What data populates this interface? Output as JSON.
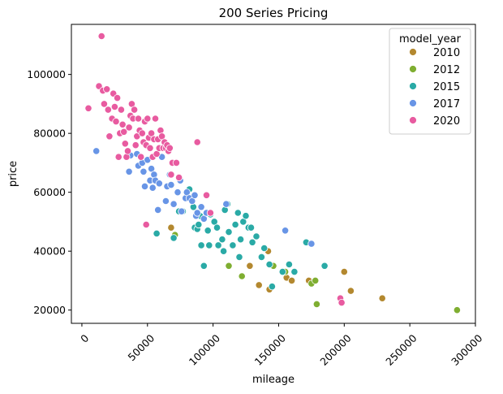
{
  "chart_data": {
    "type": "scatter",
    "title": "200 Series Pricing",
    "xlabel": "mileage",
    "ylabel": "price",
    "xlim": [
      -8000,
      300000
    ],
    "ylim": [
      15500,
      117000
    ],
    "xticks": [
      "0",
      "50000",
      "100000",
      "150000",
      "200000",
      "250000",
      "300000"
    ],
    "xtick_values": [
      0,
      50000,
      100000,
      150000,
      200000,
      250000,
      300000
    ],
    "yticks": [
      "20000",
      "40000",
      "60000",
      "80000",
      "100000"
    ],
    "ytick_values": [
      20000,
      40000,
      60000,
      80000,
      100000
    ],
    "grid": false,
    "legend_title": "model_year",
    "legend_position": "top-right",
    "series": [
      {
        "name": "2010",
        "color": "#b3882f",
        "points": [
          [
            68000,
            48000
          ],
          [
            128000,
            35000
          ],
          [
            135000,
            28500
          ],
          [
            142000,
            40000
          ],
          [
            143000,
            27000
          ],
          [
            156000,
            31000
          ],
          [
            160000,
            30000
          ],
          [
            173000,
            30000
          ],
          [
            200000,
            33000
          ],
          [
            205000,
            26500
          ],
          [
            229000,
            24000
          ]
        ]
      },
      {
        "name": "2012",
        "color": "#7fae31",
        "points": [
          [
            71000,
            45500
          ],
          [
            112000,
            35000
          ],
          [
            122000,
            31500
          ],
          [
            146000,
            35000
          ],
          [
            155000,
            33000
          ],
          [
            175000,
            29000
          ],
          [
            178000,
            30000
          ],
          [
            179000,
            22000
          ],
          [
            286000,
            20000
          ]
        ]
      },
      {
        "name": "2015",
        "color": "#2aaaa6",
        "points": [
          [
            57000,
            46000
          ],
          [
            70000,
            44500
          ],
          [
            74000,
            53500
          ],
          [
            77000,
            53500
          ],
          [
            82000,
            61000
          ],
          [
            85000,
            55000
          ],
          [
            86000,
            48000
          ],
          [
            88000,
            47500
          ],
          [
            89000,
            49000
          ],
          [
            90000,
            52000
          ],
          [
            91000,
            42000
          ],
          [
            93000,
            35000
          ],
          [
            96000,
            47000
          ],
          [
            97000,
            42000
          ],
          [
            98000,
            52500
          ],
          [
            101000,
            50000
          ],
          [
            103000,
            48000
          ],
          [
            104000,
            42000
          ],
          [
            107000,
            44000
          ],
          [
            108000,
            40000
          ],
          [
            109000,
            54000
          ],
          [
            111000,
            56000
          ],
          [
            112000,
            46500
          ],
          [
            115000,
            42000
          ],
          [
            117000,
            49000
          ],
          [
            119000,
            53000
          ],
          [
            120000,
            38000
          ],
          [
            121000,
            44000
          ],
          [
            123000,
            50000
          ],
          [
            125000,
            52000
          ],
          [
            127000,
            48000
          ],
          [
            129000,
            48000
          ],
          [
            130000,
            43000
          ],
          [
            133000,
            45000
          ],
          [
            137000,
            38000
          ],
          [
            139000,
            41000
          ],
          [
            143000,
            35500
          ],
          [
            145000,
            28000
          ],
          [
            153000,
            33000
          ],
          [
            158000,
            35500
          ],
          [
            162000,
            33000
          ],
          [
            171000,
            43000
          ],
          [
            185000,
            35000
          ]
        ]
      },
      {
        "name": "2017",
        "color": "#6895e6",
        "points": [
          [
            11000,
            74000
          ],
          [
            36000,
            67000
          ],
          [
            37000,
            72500
          ],
          [
            42000,
            73000
          ],
          [
            43000,
            69000
          ],
          [
            46000,
            70000
          ],
          [
            47000,
            67000
          ],
          [
            48000,
            62000
          ],
          [
            50000,
            71000
          ],
          [
            52000,
            64000
          ],
          [
            53000,
            68000
          ],
          [
            54000,
            61500
          ],
          [
            55000,
            66000
          ],
          [
            56000,
            64000
          ],
          [
            58000,
            54000
          ],
          [
            59000,
            63000
          ],
          [
            61000,
            72000
          ],
          [
            64000,
            57000
          ],
          [
            65000,
            62000
          ],
          [
            67000,
            66000
          ],
          [
            68000,
            62500
          ],
          [
            70000,
            56000
          ],
          [
            73000,
            60000
          ],
          [
            75000,
            64000
          ],
          [
            76000,
            53500
          ],
          [
            79000,
            58000
          ],
          [
            80000,
            60000
          ],
          [
            82000,
            58000
          ],
          [
            84000,
            57000
          ],
          [
            86000,
            59000
          ],
          [
            87000,
            52000
          ],
          [
            88000,
            53000
          ],
          [
            91000,
            55000
          ],
          [
            93000,
            51000
          ],
          [
            95000,
            53000
          ],
          [
            110000,
            56000
          ],
          [
            155000,
            47000
          ],
          [
            175000,
            42500
          ]
        ]
      },
      {
        "name": "2020",
        "color": "#e85ba0",
        "points": [
          [
            5000,
            88500
          ],
          [
            13000,
            96000
          ],
          [
            15000,
            113000
          ],
          [
            16000,
            94500
          ],
          [
            17000,
            90000
          ],
          [
            19000,
            95000
          ],
          [
            20000,
            88000
          ],
          [
            21000,
            79000
          ],
          [
            23000,
            85000
          ],
          [
            24000,
            93500
          ],
          [
            25000,
            89000
          ],
          [
            26000,
            84000
          ],
          [
            27000,
            92000
          ],
          [
            28000,
            72000
          ],
          [
            29000,
            80000
          ],
          [
            30000,
            88000
          ],
          [
            31000,
            83000
          ],
          [
            32000,
            80500
          ],
          [
            33000,
            76500
          ],
          [
            34000,
            72000
          ],
          [
            35000,
            74000
          ],
          [
            36000,
            82000
          ],
          [
            37000,
            86000
          ],
          [
            38000,
            90000
          ],
          [
            39000,
            85000
          ],
          [
            40000,
            88000
          ],
          [
            41000,
            76000
          ],
          [
            42000,
            79000
          ],
          [
            43000,
            85000
          ],
          [
            44000,
            81000
          ],
          [
            45000,
            72000
          ],
          [
            46000,
            80000
          ],
          [
            47000,
            77000
          ],
          [
            48000,
            84000
          ],
          [
            49000,
            76000
          ],
          [
            50000,
            85000
          ],
          [
            51000,
            78500
          ],
          [
            52000,
            75000
          ],
          [
            53000,
            80000
          ],
          [
            54000,
            72000
          ],
          [
            55000,
            78000
          ],
          [
            56000,
            85000
          ],
          [
            57000,
            73000
          ],
          [
            58000,
            78000
          ],
          [
            59000,
            75000
          ],
          [
            60000,
            81000
          ],
          [
            61000,
            79000
          ],
          [
            62000,
            75000
          ],
          [
            63000,
            77000
          ],
          [
            64000,
            75000
          ],
          [
            65000,
            76000
          ],
          [
            66000,
            74000
          ],
          [
            67000,
            75000
          ],
          [
            68000,
            66000
          ],
          [
            69000,
            70000
          ],
          [
            72000,
            70000
          ],
          [
            74000,
            65000
          ],
          [
            88000,
            77000
          ],
          [
            95000,
            59000
          ],
          [
            98000,
            53000
          ],
          [
            49000,
            49000
          ],
          [
            197000,
            24000
          ],
          [
            198000,
            22500
          ]
        ]
      }
    ]
  }
}
